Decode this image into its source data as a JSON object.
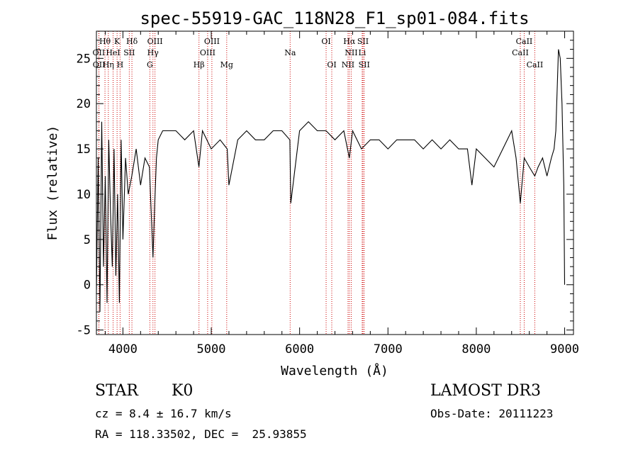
{
  "chart_data": {
    "type": "line",
    "title": "spec-55919-GAC_118N28_F1_sp01-084.fits",
    "xlabel": "Wavelength (Å)",
    "ylabel": "Flux (relative)",
    "xlim": [
      3700,
      9100
    ],
    "ylim": [
      -5.5,
      28
    ],
    "xticks": [
      4000,
      5000,
      6000,
      7000,
      8000,
      9000
    ],
    "yticks": [
      -5,
      0,
      5,
      10,
      15,
      20,
      25
    ],
    "line_color": "#000000",
    "marker_color": "#cc0000",
    "series": [
      {
        "name": "flux",
        "x": [
          3700,
          3720,
          3740,
          3760,
          3780,
          3800,
          3820,
          3840,
          3860,
          3880,
          3900,
          3920,
          3940,
          3960,
          3980,
          4000,
          4030,
          4060,
          4100,
          4150,
          4200,
          4250,
          4300,
          4320,
          4340,
          4360,
          4380,
          4400,
          4450,
          4500,
          4600,
          4700,
          4800,
          4860,
          4900,
          5000,
          5100,
          5180,
          5200,
          5300,
          5400,
          5500,
          5600,
          5700,
          5800,
          5890,
          5900,
          6000,
          6100,
          6200,
          6300,
          6400,
          6500,
          6563,
          6600,
          6700,
          6800,
          6900,
          7000,
          7100,
          7200,
          7300,
          7400,
          7500,
          7600,
          7700,
          7800,
          7900,
          7950,
          8000,
          8100,
          8200,
          8300,
          8400,
          8450,
          8498,
          8542,
          8600,
          8662,
          8700,
          8750,
          8800,
          8850,
          8880,
          8900,
          8930,
          8950,
          8970,
          8990,
          9000
        ],
        "values": [
          -1,
          14,
          -3,
          18,
          2,
          12,
          -2,
          16,
          8,
          2,
          15,
          1,
          10,
          -2,
          16,
          5,
          14,
          10,
          12,
          15,
          11,
          14,
          13,
          8,
          3,
          9,
          14,
          16,
          17,
          17,
          17,
          16,
          17,
          13,
          17,
          15,
          16,
          15,
          11,
          16,
          17,
          16,
          16,
          17,
          17,
          16,
          9,
          17,
          18,
          17,
          17,
          16,
          17,
          14,
          17,
          15,
          16,
          16,
          15,
          16,
          16,
          16,
          15,
          16,
          15,
          16,
          15,
          15,
          11,
          15,
          14,
          13,
          15,
          17,
          14,
          9,
          14,
          13,
          12,
          13,
          14,
          12,
          14,
          15,
          17,
          26,
          25,
          20,
          11,
          0
        ]
      }
    ],
    "line_markers": [
      {
        "label": "Hθ",
        "wl": 3797,
        "row": 0
      },
      {
        "label": "K",
        "wl": 3934,
        "row": 0
      },
      {
        "label": "Hδ",
        "wl": 4102,
        "row": 0
      },
      {
        "label": "OIII",
        "wl": 4363,
        "row": 0
      },
      {
        "label": "OIII",
        "wl": 5007,
        "row": 0
      },
      {
        "label": "OI",
        "wl": 6300,
        "row": 0
      },
      {
        "label": "Hα",
        "wl": 6563,
        "row": 0
      },
      {
        "label": "SII",
        "wl": 6717,
        "row": 0
      },
      {
        "label": "CaII",
        "wl": 8542,
        "row": 0
      },
      {
        "label": "OII",
        "wl": 3727,
        "row": 1
      },
      {
        "label": "HeI",
        "wl": 3889,
        "row": 1
      },
      {
        "label": "SII",
        "wl": 4072,
        "row": 1
      },
      {
        "label": "Hγ",
        "wl": 4340,
        "row": 1
      },
      {
        "label": "OIII",
        "wl": 4959,
        "row": 1
      },
      {
        "label": "Na",
        "wl": 5893,
        "row": 1
      },
      {
        "label": "NII",
        "wl": 6584,
        "row": 1
      },
      {
        "label": "Li",
        "wl": 6708,
        "row": 1
      },
      {
        "label": "CaII",
        "wl": 8498,
        "row": 1
      },
      {
        "label": "OII",
        "wl": 3729,
        "row": 2
      },
      {
        "label": "Hη",
        "wl": 3835,
        "row": 2
      },
      {
        "label": "H",
        "wl": 3968,
        "row": 2
      },
      {
        "label": "G",
        "wl": 4305,
        "row": 2
      },
      {
        "label": "Hβ",
        "wl": 4861,
        "row": 2
      },
      {
        "label": "Mg",
        "wl": 5175,
        "row": 2
      },
      {
        "label": "OI",
        "wl": 6364,
        "row": 2
      },
      {
        "label": "NII",
        "wl": 6548,
        "row": 2
      },
      {
        "label": "SII",
        "wl": 6731,
        "row": 2
      },
      {
        "label": "CaII",
        "wl": 8662,
        "row": 2
      }
    ]
  },
  "info": {
    "class": "STAR",
    "subclass": "K0",
    "survey": "LAMOST DR3",
    "cz": "cz = 8.4 ± 16.7 km/s",
    "obs_date": "Obs-Date: 20111223",
    "coords": "RA = 118.33502, DEC =  25.93855"
  }
}
